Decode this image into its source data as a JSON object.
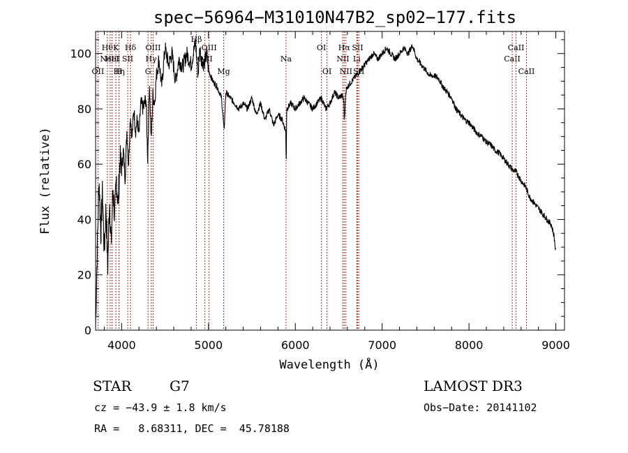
{
  "chart_data": {
    "type": "line",
    "title": "spec−56964−M31010N47B2_sp02−177.fits",
    "xlabel": "Wavelength (Å)",
    "ylabel": "Flux (relative)",
    "xlim": [
      3700,
      9100
    ],
    "ylim": [
      0,
      108
    ],
    "xticks": [
      4000,
      5000,
      6000,
      7000,
      8000,
      9000
    ],
    "yticks": [
      0,
      20,
      40,
      60,
      80,
      100
    ],
    "series": [
      {
        "name": "flux",
        "x": [
          3700,
          3720,
          3740,
          3760,
          3780,
          3800,
          3820,
          3840,
          3860,
          3880,
          3900,
          3920,
          3940,
          3960,
          3980,
          4000,
          4020,
          4040,
          4060,
          4080,
          4100,
          4120,
          4140,
          4160,
          4180,
          4200,
          4220,
          4250,
          4280,
          4300,
          4320,
          4340,
          4360,
          4380,
          4400,
          4430,
          4460,
          4500,
          4540,
          4580,
          4620,
          4660,
          4700,
          4750,
          4800,
          4850,
          4880,
          4900,
          4920,
          4950,
          4980,
          5000,
          5050,
          5100,
          5150,
          5180,
          5200,
          5250,
          5300,
          5350,
          5400,
          5450,
          5500,
          5550,
          5600,
          5650,
          5700,
          5750,
          5800,
          5850,
          5890,
          5895,
          5900,
          5950,
          6000,
          6050,
          6100,
          6150,
          6200,
          6250,
          6300,
          6350,
          6400,
          6450,
          6500,
          6540,
          6560,
          6563,
          6580,
          6600,
          6650,
          6700,
          6750,
          6800,
          6850,
          6900,
          6950,
          7000,
          7050,
          7100,
          7150,
          7200,
          7250,
          7300,
          7350,
          7400,
          7450,
          7500,
          7550,
          7600,
          7650,
          7700,
          7750,
          7800,
          7850,
          7900,
          7950,
          8000,
          8050,
          8100,
          8150,
          8200,
          8250,
          8300,
          8350,
          8400,
          8450,
          8500,
          8550,
          8600,
          8650,
          8700,
          8750,
          8800,
          8850,
          8900,
          8950,
          8980,
          9000
        ],
        "values": [
          2,
          30,
          55,
          35,
          50,
          28,
          45,
          22,
          48,
          30,
          52,
          40,
          55,
          45,
          62,
          58,
          65,
          55,
          72,
          60,
          78,
          70,
          80,
          72,
          76,
          70,
          82,
          80,
          84,
          62,
          90,
          68,
          85,
          82,
          92,
          98,
          88,
          102,
          96,
          100,
          90,
          98,
          95,
          100,
          96,
          104,
          92,
          102,
          98,
          96,
          100,
          94,
          90,
          88,
          84,
          72,
          86,
          84,
          82,
          80,
          82,
          80,
          84,
          78,
          82,
          76,
          80,
          74,
          78,
          76,
          72,
          58,
          80,
          82,
          80,
          82,
          84,
          82,
          80,
          82,
          84,
          80,
          82,
          86,
          84,
          85,
          82,
          74,
          86,
          88,
          90,
          92,
          94,
          96,
          98,
          100,
          98,
          100,
          102,
          100,
          98,
          100,
          102,
          100,
          103,
          98,
          96,
          94,
          92,
          92,
          91,
          88,
          86,
          84,
          80,
          78,
          76,
          75,
          73,
          71,
          70,
          68,
          67,
          65,
          64,
          62,
          60,
          58,
          57,
          54,
          52,
          48,
          46,
          44,
          42,
          40,
          38,
          34,
          28
        ]
      }
    ],
    "emission_lines": [
      {
        "wl": 3727,
        "label": "OII",
        "row": 3
      },
      {
        "wl": 3835,
        "label": "Hθ",
        "row": 1
      },
      {
        "wl": 3868,
        "label": "NeIII",
        "row": 2
      },
      {
        "wl": 3889,
        "label": "HeI",
        "row": 2
      },
      {
        "wl": 3934,
        "label": "K",
        "row": 1
      },
      {
        "wl": 3970,
        "label": "Hη",
        "row": 3
      },
      {
        "wl": 3969,
        "label": "H",
        "row": 3
      },
      {
        "wl": 4070,
        "label": "SII",
        "row": 2
      },
      {
        "wl": 4102,
        "label": "Hδ",
        "row": 1
      },
      {
        "wl": 4304,
        "label": "G",
        "row": 3
      },
      {
        "wl": 4340,
        "label": "Hγ",
        "row": 2
      },
      {
        "wl": 4363,
        "label": "OIII",
        "row": 1
      },
      {
        "wl": 4861,
        "label": "Hβ",
        "row": 0
      },
      {
        "wl": 4959,
        "label": "OIII",
        "row": 2
      },
      {
        "wl": 5007,
        "label": "OIII",
        "row": 1
      },
      {
        "wl": 5175,
        "label": "Mg",
        "row": 3
      },
      {
        "wl": 5893,
        "label": "Na",
        "row": 2
      },
      {
        "wl": 6300,
        "label": "OI",
        "row": 1
      },
      {
        "wl": 6364,
        "label": "OI",
        "row": 3
      },
      {
        "wl": 6548,
        "label": "NII",
        "row": 2
      },
      {
        "wl": 6563,
        "label": "Hα",
        "row": 1
      },
      {
        "wl": 6583,
        "label": "NII",
        "row": 3
      },
      {
        "wl": 6708,
        "label": "Li",
        "row": 2
      },
      {
        "wl": 6717,
        "label": "SII",
        "row": 1
      },
      {
        "wl": 6731,
        "label": "SII",
        "row": 3
      },
      {
        "wl": 8498,
        "label": "CaII",
        "row": 2
      },
      {
        "wl": 8542,
        "label": "CaII",
        "row": 1
      },
      {
        "wl": 8662,
        "label": "CaII",
        "row": 3
      }
    ]
  },
  "info": {
    "object_class": "STAR",
    "subclass": "G7",
    "survey": "LAMOST DR3",
    "redshift": "cz = −43.9 ± 1.8 km/s",
    "obs_date": "Obs−Date: 20141102",
    "coords": "RA =   8.68311, DEC =  45.78188"
  },
  "colors": {
    "spectrum": "#000000",
    "line_markers": "#b22222",
    "axes": "#000000"
  }
}
